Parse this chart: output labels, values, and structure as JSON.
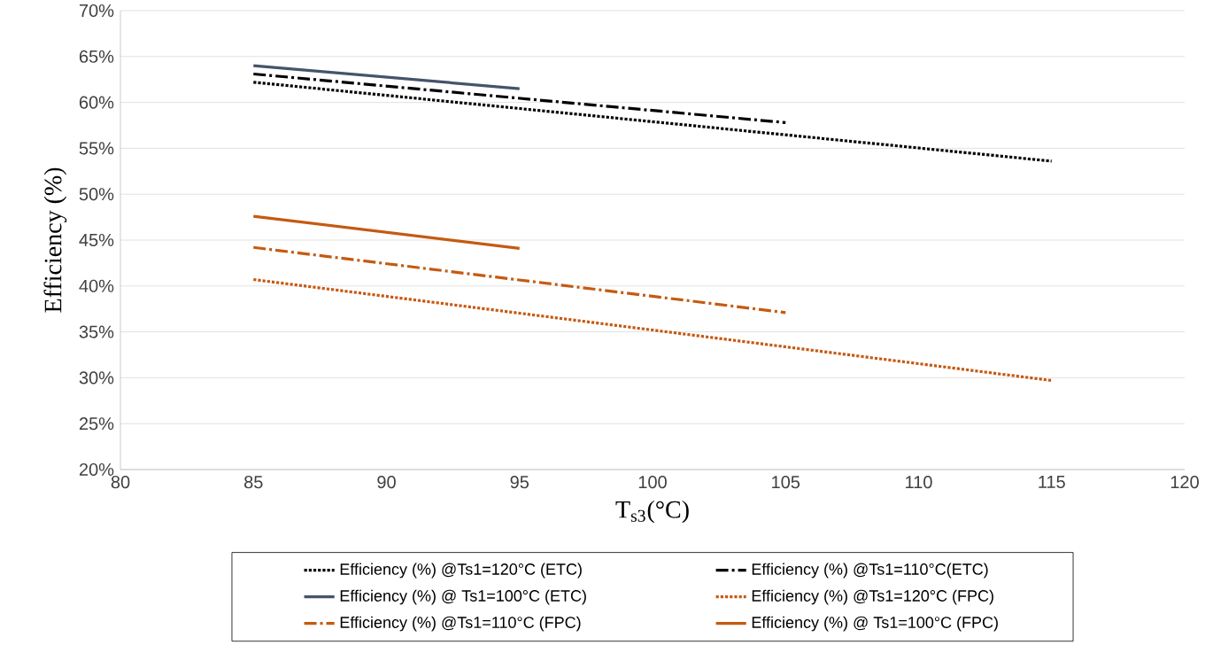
{
  "chart_data": {
    "type": "line",
    "xlabel": "T$_{s3}$(°C)",
    "ylabel": "Efficiency (%)",
    "xlim": [
      80,
      120
    ],
    "xticks": [
      80,
      85,
      90,
      95,
      100,
      105,
      110,
      115,
      120
    ],
    "ylim": [
      20,
      70
    ],
    "yticks": [
      {
        "value": 20,
        "label": "20%"
      },
      {
        "value": 25,
        "label": "25%"
      },
      {
        "value": 30,
        "label": "30%"
      },
      {
        "value": 35,
        "label": "35%"
      },
      {
        "value": 40,
        "label": "40%"
      },
      {
        "value": 45,
        "label": "45%"
      },
      {
        "value": 50,
        "label": "50%"
      },
      {
        "value": 55,
        "label": "55%"
      },
      {
        "value": 60,
        "label": "60%"
      },
      {
        "value": 65,
        "label": "65%"
      },
      {
        "value": 70,
        "label": "70%"
      }
    ],
    "grid": "y",
    "legend": "bottom",
    "marker": "none",
    "series": [
      {
        "name": "Efficiency (%) @Ts1=120°C (ETC)",
        "color": "#000000",
        "line_style": "dotted",
        "x": [
          85,
          115
        ],
        "values": [
          62.2,
          53.6
        ]
      },
      {
        "name": "Efficiency (%) @Ts1=110°C(ETC)",
        "color": "#000000",
        "line_style": "dashdot",
        "x": [
          85,
          105
        ],
        "values": [
          63.1,
          57.8
        ]
      },
      {
        "name": "Efficiency (%) @ Ts1=100°C (ETC)",
        "color": "#44546a",
        "line_style": "solid",
        "x": [
          85,
          95
        ],
        "values": [
          64.0,
          61.5
        ]
      },
      {
        "name": "Efficiency (%) @Ts1=120°C (FPC)",
        "color": "#c55a11",
        "line_style": "dotted",
        "x": [
          85,
          115
        ],
        "values": [
          40.7,
          29.7
        ]
      },
      {
        "name": "Efficiency (%) @Ts1=110°C (FPC)",
        "color": "#c55a11",
        "line_style": "dashdot",
        "x": [
          85,
          105
        ],
        "values": [
          44.2,
          37.1
        ]
      },
      {
        "name": "Efficiency (%) @ Ts1=100°C (FPC)",
        "color": "#c55a11",
        "line_style": "solid",
        "x": [
          85,
          95
        ],
        "values": [
          47.6,
          44.1
        ]
      }
    ]
  }
}
